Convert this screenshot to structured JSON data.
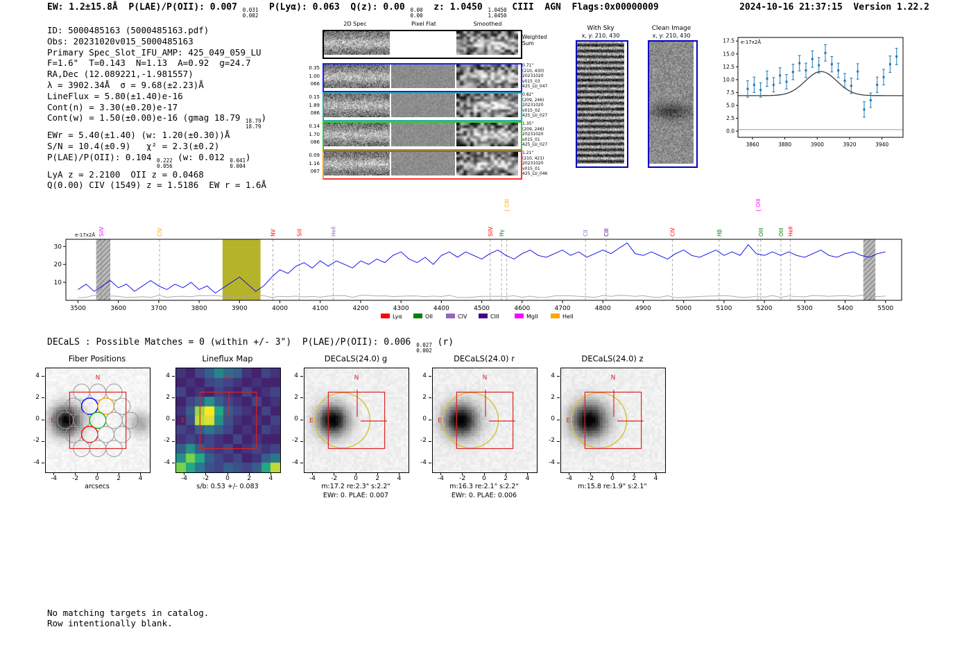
{
  "header": {
    "left": [
      {
        "t": "EW: 1.2±15.8Å  P(LAE)/P(OII): 0.007 "
      },
      {
        "hi": "0.031",
        "lo": "0.002"
      },
      {
        "t": "  P(Lyα): 0.063  Q(z): 0.00 "
      },
      {
        "hi": "0.00",
        "lo": "0.00"
      },
      {
        "t": "  z: 1.0450 "
      },
      {
        "hi": "1.0450",
        "lo": "1.0450"
      },
      {
        "t": " CIII  AGN  Flags:0x00000009"
      }
    ],
    "right": "2024-10-16 21:37:15  Version 1.22.2"
  },
  "info": {
    "lines": [
      [
        {
          "t": "ID: 5000485163 (5000485163.pdf)"
        }
      ],
      [
        {
          "t": "Obs: 20231020v015_5000485163"
        }
      ],
      [
        {
          "t": "Primary Spec_Slot_IFU_AMP: 425_049_059_LU"
        }
      ],
      [
        {
          "t": "F=1.6\"  T=0.143  N=1.13  A=0.92  g=24.7"
        }
      ],
      [
        {
          "t": "RA,Dec (12.089221,-1.981557)"
        }
      ],
      [
        {
          "t": "λ = 3902.34Å  σ = 9.68(±2.23)Å"
        }
      ],
      [
        {
          "t": "LineFlux = 5.80(±1.40)e-16"
        }
      ],
      [
        {
          "t": "Cont(n) = 3.30(±0.20)e-17"
        }
      ],
      [
        {
          "t": "Cont(w) = 1.50(±0.00)e-16 (gmag 18.79 "
        },
        {
          "hi": "18.79",
          "lo": "18.79"
        },
        {
          "t": ")"
        }
      ],
      [
        {
          "t": "EWr = 5.40(±1.40) (w: 1.20(±0.30))Å"
        }
      ],
      [
        {
          "t": "S/N = 10.4(±0.9)   χ² = 2.3(±0.2)"
        }
      ],
      [
        {
          "t": "P(LAE)/P(OII): 0.104 "
        },
        {
          "hi": "0.222",
          "lo": "0.056"
        },
        {
          "t": " (w: 0.012 "
        },
        {
          "hi": "0.041",
          "lo": "0.004"
        },
        {
          "t": ")"
        }
      ],
      [
        {
          "t": "LyA z = 2.2100  OII z = 0.0468"
        }
      ],
      [
        {
          "t": "Q(0.00) CIV (1549) z = 1.5186  EW r = 1.6Å"
        }
      ]
    ]
  },
  "spec2d": {
    "col_titles": [
      "2D Spec",
      "Pixel Flat",
      "Smoothed"
    ],
    "weighted_sum": [
      "Weighted",
      "Sum"
    ],
    "rows": [
      {
        "left_label": [
          "0.35",
          "1.00",
          "066"
        ],
        "right_label": [
          "0.71\"",
          "(210, 430)",
          "20231020",
          "v015_03",
          "425_LU_047"
        ],
        "color": "#2020ee"
      },
      {
        "left_label": [
          "0.15",
          "1.89",
          "086"
        ],
        "right_label": [
          "0.82\"",
          "(209, 246)",
          "20231020",
          "v015_02",
          "425_LU_027"
        ],
        "color": "#28b0a0"
      },
      {
        "left_label": [
          "0.14",
          "1.70",
          "086"
        ],
        "right_label": [
          "1.35\"",
          "(209, 246)",
          "20231020",
          "v015_01",
          "425_LU_027"
        ],
        "color": "#3ac83a"
      },
      {
        "left_label": [
          "0.09",
          "1.16",
          "067"
        ],
        "right_label": [
          "1.21\"",
          "(210, 421)",
          "20231020",
          "v015_01",
          "425_LU_046"
        ],
        "color": "#ff3030",
        "left_color": "#ffa500"
      }
    ]
  },
  "withsky": {
    "title": "With Sky",
    "xy": "x, y: 210, 430"
  },
  "clean": {
    "title": "Clean Image",
    "xy": "x, y: 210, 430"
  },
  "decals_line": [
    {
      "t": "DECaLS : Possible Matches = 0 (within +/- 3\")  P(LAE)/P(OII): 0.006 "
    },
    {
      "hi": "0.027",
      "lo": "0.002"
    },
    {
      "t": " (r)"
    }
  ],
  "cutouts": [
    {
      "title": "Fiber Positions",
      "caption1": "arcsecs",
      "caption2": ""
    },
    {
      "title": "Lineflux Map",
      "caption1": "s/b: 0.53 +/- 0.083",
      "caption2": ""
    },
    {
      "title": "DECaLS(24.0) g",
      "caption1": "m:17.2 re:2.3\" s:2.2\"",
      "caption2": "EWr: 0. PLAE: 0.007"
    },
    {
      "title": "DECaLS(24.0) r",
      "caption1": "m:16.3 re:2.1\" s:2.2\"",
      "caption2": "EWr: 0. PLAE: 0.006"
    },
    {
      "title": "DECaLS(24.0) z",
      "caption1": "m:15.8 re:1.9\" s:2.1\"",
      "caption2": ""
    }
  ],
  "axes": {
    "cutout_ticks": [
      "-4",
      "-2",
      "0",
      "2",
      "4"
    ]
  },
  "footer": [
    "No matching targets in catalog.",
    "Row intentionally blank."
  ],
  "chart_data": [
    {
      "id": "zoom_spectrum",
      "type": "scatter",
      "annotation": "e-17x2Å",
      "xlim": [
        3851,
        3953
      ],
      "ylim": [
        -1.2,
        18.2
      ],
      "xticks": [
        3860,
        3880,
        3900,
        3920,
        3940
      ],
      "yticks": [
        0.0,
        2.5,
        5.0,
        7.5,
        10.0,
        12.5,
        15.0,
        17.5
      ],
      "points": [
        [
          3857,
          8.2,
          1.6
        ],
        [
          3861,
          9.0,
          1.5
        ],
        [
          3865,
          8.0,
          1.4
        ],
        [
          3869,
          10.2,
          1.5
        ],
        [
          3873,
          9.0,
          1.4
        ],
        [
          3877,
          10.8,
          1.5
        ],
        [
          3881,
          9.6,
          1.4
        ],
        [
          3885,
          11.5,
          1.5
        ],
        [
          3889,
          13.2,
          1.5
        ],
        [
          3893,
          11.8,
          1.4
        ],
        [
          3897,
          14.0,
          1.6
        ],
        [
          3901,
          12.8,
          1.5
        ],
        [
          3905,
          15.2,
          1.6
        ],
        [
          3909,
          13.0,
          1.5
        ],
        [
          3913,
          11.8,
          1.4
        ],
        [
          3917,
          9.8,
          1.4
        ],
        [
          3921,
          8.8,
          1.5
        ],
        [
          3925,
          11.6,
          1.5
        ],
        [
          3929,
          4.2,
          1.5
        ],
        [
          3933,
          6.0,
          1.4
        ],
        [
          3937,
          9.0,
          1.5
        ],
        [
          3941,
          10.5,
          1.5
        ],
        [
          3945,
          13.0,
          1.6
        ],
        [
          3949,
          14.5,
          1.6
        ]
      ],
      "fit": {
        "type": "gaussian",
        "mu": 3902.34,
        "sigma": 9.68,
        "amplitude": 4.7,
        "continuum": 6.9
      },
      "baseline": 0.3,
      "point_color": "#1f77b4",
      "fit_color": "#3a3a3a"
    },
    {
      "id": "full_spectrum",
      "type": "line",
      "annotation": "e-17x2Å",
      "xlim": [
        3470,
        5540
      ],
      "ylim": [
        0,
        34
      ],
      "xticks": [
        3500,
        3600,
        3700,
        3800,
        3900,
        4000,
        4100,
        4200,
        4300,
        4400,
        4500,
        4600,
        4700,
        4800,
        4900,
        5000,
        5100,
        5200,
        5300,
        5400,
        5500
      ],
      "yticks": [
        10,
        20,
        30
      ],
      "x_start": 3500,
      "x_step": 20,
      "flux": [
        6,
        9,
        5,
        8,
        11,
        7,
        9,
        5,
        8,
        11,
        8,
        6,
        9,
        7,
        10,
        6,
        8,
        4,
        7,
        10,
        13,
        9,
        5,
        8,
        13,
        17,
        15,
        19,
        21,
        18,
        22,
        19,
        22,
        20,
        18,
        22,
        20,
        23,
        21,
        25,
        27,
        23,
        21,
        24,
        20,
        25,
        27,
        24,
        27,
        25,
        23,
        26,
        28,
        25,
        23,
        26,
        28,
        25,
        24,
        26,
        28,
        25,
        27,
        24,
        26,
        28,
        26,
        29,
        32,
        26,
        25,
        27,
        25,
        23,
        26,
        28,
        25,
        24,
        26,
        28,
        25,
        27,
        25,
        31,
        26,
        25,
        27,
        25,
        27,
        25,
        24,
        26,
        28,
        25,
        24,
        26,
        27,
        25,
        24,
        26,
        27
      ],
      "noise_floor": {
        "base": 2.0,
        "amp": 1.4
      },
      "highlight_band": {
        "x0": 3858,
        "x1": 3952,
        "color": "#b5b32a"
      },
      "hatch_bands": [
        [
          3545,
          3580
        ],
        [
          5445,
          5475
        ]
      ],
      "line_color": "#0000ee",
      "markers": [
        {
          "label": "SiIV",
          "wave": 3558,
          "color": "#ff00ff",
          "row": 1
        },
        {
          "label": "CIV",
          "wave": 3702,
          "color": "#ffa500",
          "row": 1
        },
        {
          "label": "NV",
          "wave": 3983,
          "color": "#ff0000",
          "row": 1
        },
        {
          "label": "SiII",
          "wave": 4048,
          "color": "#ff0000",
          "row": 1
        },
        {
          "label": "HeII",
          "wave": 4132,
          "color": "#9467bd",
          "row": 1
        },
        {
          "label": "SiIV",
          "wave": 4521,
          "color": "#ff0000",
          "row": 1
        },
        {
          "label": "Hγ",
          "wave": 4549,
          "color": "#008000",
          "row": 1
        },
        {
          "label": "CIII",
          "wave": 4562,
          "color": "#ffa500",
          "row": 2,
          "brace": true
        },
        {
          "label": "CII",
          "wave": 4757,
          "color": "#9467bd",
          "row": 1
        },
        {
          "label": "CIII",
          "wave": 4808,
          "color": "#4b0082",
          "row": 1
        },
        {
          "label": "CIV",
          "wave": 4972,
          "color": "#ff0000",
          "row": 1
        },
        {
          "label": "Hβ",
          "wave": 5088,
          "color": "#008000",
          "row": 1
        },
        {
          "label": "OIII",
          "wave": 5184,
          "color": "#ff00ff",
          "row": 2,
          "brace": true
        },
        {
          "label": "OIII",
          "wave": 5191,
          "color": "#008000",
          "row": 1
        },
        {
          "label": "OIII",
          "wave": 5241,
          "color": "#008000",
          "row": 1
        },
        {
          "label": "HeII",
          "wave": 5264,
          "color": "#ff0000",
          "row": 1
        }
      ],
      "legend": [
        {
          "label": "Lyα",
          "color": "#ff0000"
        },
        {
          "label": "OII",
          "color": "#008000"
        },
        {
          "label": "CIV",
          "color": "#9467bd"
        },
        {
          "label": "CIII",
          "color": "#4b0082"
        },
        {
          "label": "MgII",
          "color": "#ff00ff"
        },
        {
          "label": "HeII",
          "color": "#ffa500"
        }
      ]
    },
    {
      "id": "fiber_positions",
      "type": "scatter",
      "xlabel": "arcsecs",
      "xticks": [
        -4,
        -2,
        0,
        2,
        4
      ],
      "yticks": [
        -4,
        -2,
        0,
        2,
        4
      ],
      "fiber_radius_arcsec": 0.75,
      "highlight_fibers": [
        {
          "x": -0.75,
          "y": 1.3,
          "color": "#0000ff"
        },
        {
          "x": 0.0,
          "y": 0.0,
          "color": "#00bb00"
        },
        {
          "x": -0.75,
          "y": -1.3,
          "color": "#ff0000"
        },
        {
          "x": 0.75,
          "y": 1.3,
          "color": "#ffa500"
        }
      ]
    },
    {
      "id": "lineflux_map",
      "type": "heatmap",
      "matrix": [
        [
          0.15,
          0.1,
          0.2,
          0.3,
          0.45,
          0.35,
          0.3,
          0.15,
          0.1,
          0.2,
          0.15
        ],
        [
          0.1,
          0.15,
          0.1,
          0.2,
          0.25,
          0.2,
          0.15,
          0.1,
          0.15,
          0.1,
          0.1
        ],
        [
          0.2,
          0.1,
          0.15,
          0.1,
          0.2,
          0.15,
          0.1,
          0.2,
          0.1,
          0.15,
          0.2
        ],
        [
          0.1,
          0.2,
          0.3,
          0.5,
          0.3,
          0.2,
          0.15,
          0.1,
          0.2,
          0.1,
          0.15
        ],
        [
          0.15,
          0.3,
          0.85,
          1.0,
          0.6,
          0.3,
          0.2,
          0.15,
          0.1,
          0.2,
          0.1
        ],
        [
          0.1,
          0.25,
          0.9,
          0.95,
          0.5,
          0.25,
          0.15,
          0.1,
          0.15,
          0.1,
          0.2
        ],
        [
          0.2,
          0.15,
          0.3,
          0.4,
          0.3,
          0.2,
          0.1,
          0.15,
          0.1,
          0.2,
          0.15
        ],
        [
          0.15,
          0.2,
          0.15,
          0.2,
          0.15,
          0.1,
          0.2,
          0.1,
          0.15,
          0.1,
          0.1
        ],
        [
          0.3,
          0.5,
          0.3,
          0.2,
          0.15,
          0.2,
          0.1,
          0.15,
          0.2,
          0.15,
          0.2
        ],
        [
          0.5,
          0.8,
          0.6,
          0.3,
          0.2,
          0.15,
          0.2,
          0.1,
          0.15,
          0.3,
          0.4
        ],
        [
          0.8,
          0.6,
          0.4,
          0.25,
          0.2,
          0.3,
          0.25,
          0.2,
          0.3,
          0.6,
          0.9
        ]
      ],
      "palette": [
        "#440154",
        "#414487",
        "#2a788e",
        "#22a884",
        "#7ad151",
        "#fde725"
      ]
    },
    {
      "id": "decals_overlays",
      "type": "scatter",
      "aperture": {
        "cx_arcsec": -1.3,
        "cy_arcsec": 0.0,
        "r_arcsec": 2.55,
        "color": "#d8c23c"
      }
    }
  ]
}
